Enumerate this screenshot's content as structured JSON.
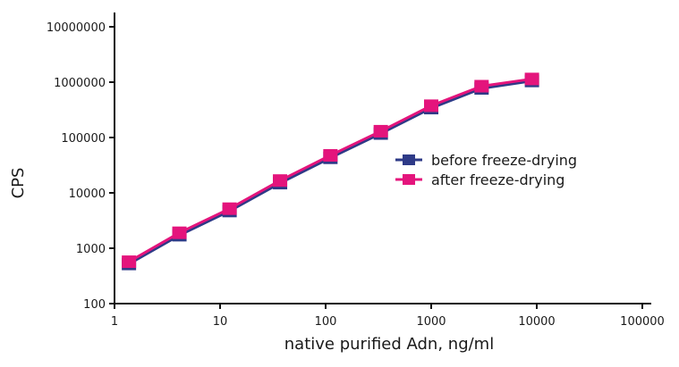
{
  "chart_data": {
    "type": "line",
    "title": "",
    "xlabel": "native purified Adn, ng/ml",
    "ylabel": "CPS",
    "x_scale": "log",
    "y_scale": "log",
    "xlim": [
      1,
      100000
    ],
    "ylim": [
      100,
      10000000
    ],
    "x_ticks": [
      "1",
      "10",
      "100",
      "1000",
      "10000",
      "100000"
    ],
    "y_ticks": [
      "100",
      "1000",
      "10000",
      "100000",
      "1000000",
      "10000000"
    ],
    "grid": false,
    "legend_position": "center-right",
    "series": [
      {
        "name": "before freeze-drying",
        "color": "#2e3a87",
        "marker": "square",
        "x": [
          1.37,
          4.12,
          12.3,
          37,
          111,
          333,
          1000,
          3000,
          9000
        ],
        "y": [
          520,
          1720,
          4700,
          15000,
          43000,
          118000,
          340000,
          770000,
          1050000
        ]
      },
      {
        "name": "after freeze-drying",
        "color": "#e4147c",
        "marker": "square",
        "x": [
          1.37,
          4.12,
          12.3,
          37,
          111,
          333,
          1000,
          3000,
          9000
        ],
        "y": [
          540,
          1800,
          4900,
          15800,
          45000,
          123000,
          355000,
          800000,
          1080000
        ]
      }
    ]
  }
}
